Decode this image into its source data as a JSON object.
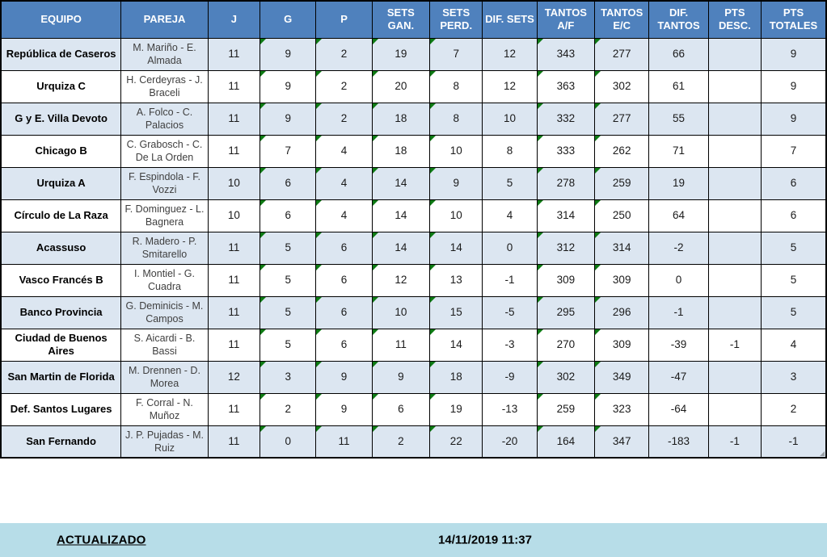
{
  "table": {
    "columns": [
      {
        "key": "equipo",
        "label": "EQUIPO"
      },
      {
        "key": "pareja",
        "label": "PAREJA"
      },
      {
        "key": "j",
        "label": "J"
      },
      {
        "key": "g",
        "label": "G"
      },
      {
        "key": "p",
        "label": "P"
      },
      {
        "key": "sets_gan",
        "label": "SETS GAN."
      },
      {
        "key": "sets_perd",
        "label": "SETS PERD."
      },
      {
        "key": "dif_sets",
        "label": "DIF. SETS"
      },
      {
        "key": "tantos_af",
        "label": "TANTOS A/F"
      },
      {
        "key": "tantos_ec",
        "label": "TANTOS E/C"
      },
      {
        "key": "dif_tantos",
        "label": "DIF. TANTOS"
      },
      {
        "key": "pts_desc",
        "label": "PTS DESC."
      },
      {
        "key": "pts_totales",
        "label": "PTS TOTALES"
      }
    ],
    "flagged_columns": [
      "g",
      "p",
      "sets_gan",
      "sets_perd",
      "tantos_af",
      "tantos_ec"
    ],
    "rows": [
      {
        "equipo": "República de Caseros",
        "pareja": "M. Mariño - E. Almada",
        "j": "11",
        "g": "9",
        "p": "2",
        "sets_gan": "19",
        "sets_perd": "7",
        "dif_sets": "12",
        "tantos_af": "343",
        "tantos_ec": "277",
        "dif_tantos": "66",
        "pts_desc": "",
        "pts_totales": "9"
      },
      {
        "equipo": "Urquiza C",
        "pareja": "H. Cerdeyras - J. Braceli",
        "j": "11",
        "g": "9",
        "p": "2",
        "sets_gan": "20",
        "sets_perd": "8",
        "dif_sets": "12",
        "tantos_af": "363",
        "tantos_ec": "302",
        "dif_tantos": "61",
        "pts_desc": "",
        "pts_totales": "9"
      },
      {
        "equipo": "G y E. Villa Devoto",
        "pareja": "A. Folco - C. Palacios",
        "j": "11",
        "g": "9",
        "p": "2",
        "sets_gan": "18",
        "sets_perd": "8",
        "dif_sets": "10",
        "tantos_af": "332",
        "tantos_ec": "277",
        "dif_tantos": "55",
        "pts_desc": "",
        "pts_totales": "9"
      },
      {
        "equipo": "Chicago B",
        "pareja": "C. Grabosch - C. De La Orden",
        "j": "11",
        "g": "7",
        "p": "4",
        "sets_gan": "18",
        "sets_perd": "10",
        "dif_sets": "8",
        "tantos_af": "333",
        "tantos_ec": "262",
        "dif_tantos": "71",
        "pts_desc": "",
        "pts_totales": "7"
      },
      {
        "equipo": "Urquiza A",
        "pareja": "F. Espindola - F. Vozzi",
        "j": "10",
        "g": "6",
        "p": "4",
        "sets_gan": "14",
        "sets_perd": "9",
        "dif_sets": "5",
        "tantos_af": "278",
        "tantos_ec": "259",
        "dif_tantos": "19",
        "pts_desc": "",
        "pts_totales": "6"
      },
      {
        "equipo": "Círculo de La Raza",
        "pareja": "F. Dominguez - L. Bagnera",
        "j": "10",
        "g": "6",
        "p": "4",
        "sets_gan": "14",
        "sets_perd": "10",
        "dif_sets": "4",
        "tantos_af": "314",
        "tantos_ec": "250",
        "dif_tantos": "64",
        "pts_desc": "",
        "pts_totales": "6"
      },
      {
        "equipo": "Acassuso",
        "pareja": "R. Madero - P. Smitarello",
        "j": "11",
        "g": "5",
        "p": "6",
        "sets_gan": "14",
        "sets_perd": "14",
        "dif_sets": "0",
        "tantos_af": "312",
        "tantos_ec": "314",
        "dif_tantos": "-2",
        "pts_desc": "",
        "pts_totales": "5"
      },
      {
        "equipo": "Vasco Francés B",
        "pareja": "I. Montiel - G. Cuadra",
        "j": "11",
        "g": "5",
        "p": "6",
        "sets_gan": "12",
        "sets_perd": "13",
        "dif_sets": "-1",
        "tantos_af": "309",
        "tantos_ec": "309",
        "dif_tantos": "0",
        "pts_desc": "",
        "pts_totales": "5"
      },
      {
        "equipo": "Banco Provincia",
        "pareja": "G. Deminicis - M. Campos",
        "j": "11",
        "g": "5",
        "p": "6",
        "sets_gan": "10",
        "sets_perd": "15",
        "dif_sets": "-5",
        "tantos_af": "295",
        "tantos_ec": "296",
        "dif_tantos": "-1",
        "pts_desc": "",
        "pts_totales": "5"
      },
      {
        "equipo": "Ciudad de Buenos Aires",
        "pareja": "S. Aicardi - B. Bassi",
        "j": "11",
        "g": "5",
        "p": "6",
        "sets_gan": "11",
        "sets_perd": "14",
        "dif_sets": "-3",
        "tantos_af": "270",
        "tantos_ec": "309",
        "dif_tantos": "-39",
        "pts_desc": "-1",
        "pts_totales": "4"
      },
      {
        "equipo": "San Martin de Florida",
        "pareja": "M. Drennen - D. Morea",
        "j": "12",
        "g": "3",
        "p": "9",
        "sets_gan": "9",
        "sets_perd": "18",
        "dif_sets": "-9",
        "tantos_af": "302",
        "tantos_ec": "349",
        "dif_tantos": "-47",
        "pts_desc": "",
        "pts_totales": "3"
      },
      {
        "equipo": "Def. Santos Lugares",
        "pareja": "F. Corral - N. Muñoz",
        "j": "11",
        "g": "2",
        "p": "9",
        "sets_gan": "6",
        "sets_perd": "19",
        "dif_sets": "-13",
        "tantos_af": "259",
        "tantos_ec": "323",
        "dif_tantos": "-64",
        "pts_desc": "",
        "pts_totales": "2"
      },
      {
        "equipo": "San Fernando",
        "pareja": "J. P. Pujadas - M. Ruiz",
        "j": "11",
        "g": "0",
        "p": "11",
        "sets_gan": "2",
        "sets_perd": "22",
        "dif_sets": "-20",
        "tantos_af": "164",
        "tantos_ec": "347",
        "dif_tantos": "-183",
        "pts_desc": "-1",
        "pts_totales": "-1"
      }
    ]
  },
  "footer": {
    "label": "ACTUALIZADO",
    "timestamp": "14/11/2019 11:37"
  },
  "colors": {
    "header_bg": "#4f81bd",
    "alt_row_bg": "#dce6f1",
    "footer_bg": "#b7dde8",
    "flag_green": "#0e7a14",
    "border": "#000000"
  }
}
